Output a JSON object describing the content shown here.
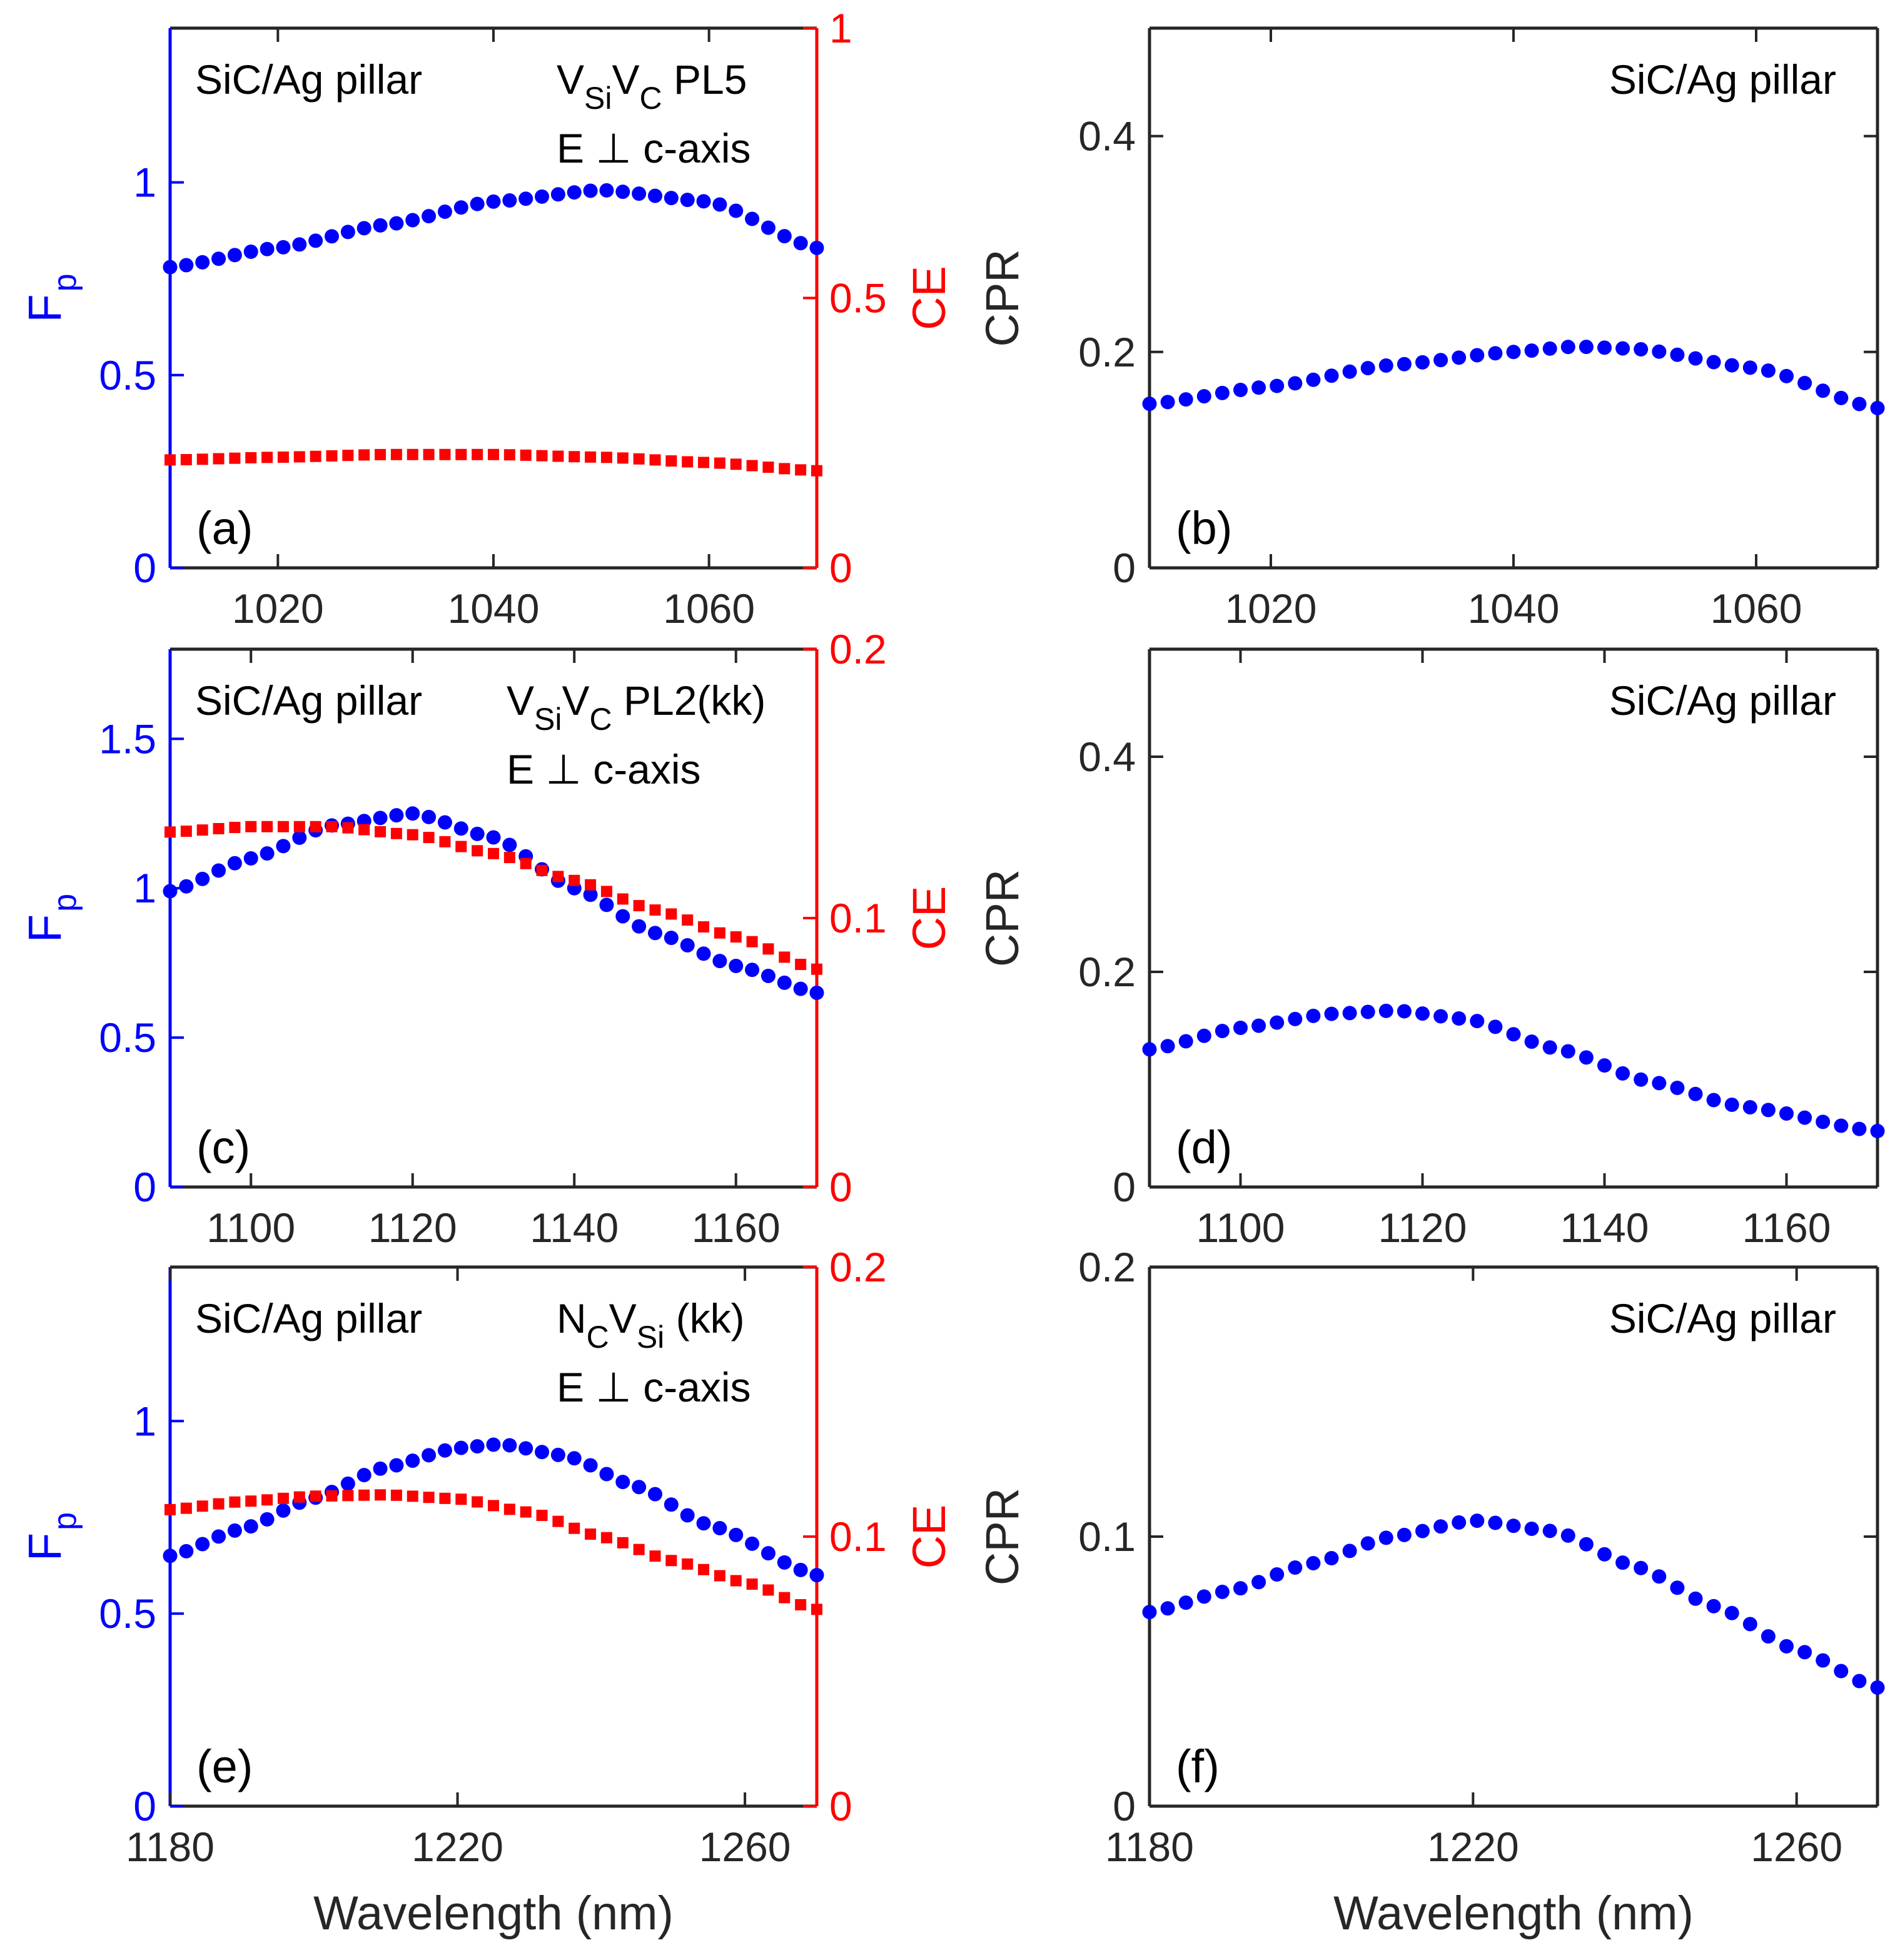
{
  "figure": {
    "xlabel": "Wavelength (nm)"
  },
  "chart_data": [
    {
      "panel": "a",
      "type": "scatter",
      "panel_label": "(a)",
      "annotation": "SiC/Ag pillar",
      "defect": {
        "base1": "V",
        "sub1": "Si",
        "base2": "V",
        "sub2": "C",
        "suffix": " PL5"
      },
      "polarization": "E ⊥ c-axis",
      "xlim": [
        1010,
        1070
      ],
      "xticks": [
        1020,
        1040,
        1060
      ],
      "xticklabels": [
        "1020",
        "1040",
        "1060"
      ],
      "ylabel": "F",
      "ylabel_sub": "p",
      "ylim": [
        0,
        1.4
      ],
      "yticks": [
        0,
        0.5,
        1
      ],
      "yticklabels": [
        "0",
        "0.5",
        "1"
      ],
      "y2label": "CE",
      "y2lim": [
        0,
        1
      ],
      "y2ticks": [
        0,
        0.5,
        1
      ],
      "y2ticklabels": [
        "0",
        "0.5",
        "1"
      ],
      "colors": {
        "fp": "#0000ff",
        "ce": "#ff0000"
      },
      "series": [
        {
          "name": "Fp",
          "axis": "left",
          "marker": "circle",
          "peak_x": 1050,
          "x_start": 1010,
          "x_end": 1070,
          "n": 41,
          "knots_x": [
            1010,
            1020,
            1030,
            1040,
            1050,
            1060,
            1070
          ],
          "knots_y": [
            0.78,
            0.83,
            0.89,
            0.95,
            0.98,
            0.95,
            0.83
          ]
        },
        {
          "name": "CE",
          "axis": "right",
          "marker": "square",
          "x_start": 1010,
          "x_end": 1070,
          "n": 41,
          "knots_x": [
            1010,
            1020,
            1030,
            1040,
            1050,
            1060,
            1070
          ],
          "knots_y": [
            0.2,
            0.205,
            0.21,
            0.21,
            0.205,
            0.195,
            0.18
          ]
        }
      ]
    },
    {
      "panel": "b",
      "type": "scatter",
      "panel_label": "(b)",
      "annotation": "SiC/Ag pillar",
      "xlim": [
        1010,
        1070
      ],
      "xticks": [
        1020,
        1040,
        1060
      ],
      "xticklabels": [
        "1020",
        "1040",
        "1060"
      ],
      "ylabel": "CPR",
      "ylim": [
        0,
        0.5
      ],
      "yticks": [
        0,
        0.2,
        0.4
      ],
      "yticklabels": [
        "0",
        "0.2",
        "0.4"
      ],
      "colors": {
        "cpr": "#0000ff"
      },
      "series": [
        {
          "name": "CPR",
          "axis": "left",
          "marker": "circle",
          "x_start": 1010,
          "x_end": 1070,
          "n": 41,
          "knots_x": [
            1010,
            1020,
            1030,
            1040,
            1045,
            1050,
            1060,
            1070
          ],
          "knots_y": [
            0.152,
            0.168,
            0.188,
            0.2,
            0.205,
            0.203,
            0.185,
            0.148
          ]
        }
      ]
    },
    {
      "panel": "c",
      "type": "scatter",
      "panel_label": "(c)",
      "annotation": "SiC/Ag pillar",
      "defect": {
        "base1": "V",
        "sub1": "Si",
        "base2": "V",
        "sub2": "C",
        "suffix": " PL2(kk)"
      },
      "polarization": "E ⊥ c-axis",
      "xlim": [
        1090,
        1170
      ],
      "xticks": [
        1100,
        1120,
        1140,
        1160
      ],
      "xticklabels": [
        "1100",
        "1120",
        "1140",
        "1160"
      ],
      "ylabel": "F",
      "ylabel_sub": "p",
      "ylim": [
        0,
        1.8
      ],
      "yticks": [
        0,
        0.5,
        1,
        1.5
      ],
      "yticklabels": [
        "0",
        "0.5",
        "1",
        "1.5"
      ],
      "y2label": "CE",
      "y2lim": [
        0,
        0.2
      ],
      "y2ticks": [
        0,
        0.1,
        0.2
      ],
      "y2ticklabels": [
        "0",
        "0.1",
        "0.2"
      ],
      "colors": {
        "fp": "#0000ff",
        "ce": "#ff0000"
      },
      "series": [
        {
          "name": "Fp",
          "axis": "left",
          "marker": "circle",
          "x_start": 1090,
          "x_end": 1170,
          "n": 41,
          "knots_x": [
            1090,
            1100,
            1110,
            1120,
            1130,
            1140,
            1150,
            1160,
            1170
          ],
          "knots_y": [
            0.99,
            1.1,
            1.21,
            1.25,
            1.17,
            1.0,
            0.85,
            0.74,
            0.65
          ]
        },
        {
          "name": "CE",
          "axis": "right",
          "marker": "square",
          "x_start": 1090,
          "x_end": 1170,
          "n": 41,
          "knots_x": [
            1090,
            1100,
            1110,
            1120,
            1130,
            1140,
            1150,
            1160,
            1170
          ],
          "knots_y": [
            0.132,
            0.134,
            0.134,
            0.131,
            0.124,
            0.114,
            0.103,
            0.093,
            0.081
          ]
        }
      ]
    },
    {
      "panel": "d",
      "type": "scatter",
      "panel_label": "(d)",
      "annotation": "SiC/Ag pillar",
      "xlim": [
        1090,
        1170
      ],
      "xticks": [
        1100,
        1120,
        1140,
        1160
      ],
      "xticklabels": [
        "1100",
        "1120",
        "1140",
        "1160"
      ],
      "ylabel": "CPR",
      "ylim": [
        0,
        0.5
      ],
      "yticks": [
        0,
        0.2,
        0.4
      ],
      "yticklabels": [
        "0",
        "0.2",
        "0.4"
      ],
      "colors": {
        "cpr": "#0000ff"
      },
      "series": [
        {
          "name": "CPR",
          "axis": "left",
          "marker": "circle",
          "x_start": 1090,
          "x_end": 1170,
          "n": 41,
          "knots_x": [
            1090,
            1100,
            1110,
            1117,
            1125,
            1135,
            1145,
            1155,
            1170
          ],
          "knots_y": [
            0.128,
            0.148,
            0.161,
            0.164,
            0.156,
            0.128,
            0.098,
            0.075,
            0.052
          ]
        }
      ]
    },
    {
      "panel": "e",
      "type": "scatter",
      "panel_label": "(e)",
      "annotation": "SiC/Ag pillar",
      "defect": {
        "base1": "N",
        "sub1": "C",
        "base2": "V",
        "sub2": "Si",
        "suffix": " (kk)"
      },
      "polarization": "E ⊥ c-axis",
      "xlim": [
        1180,
        1270
      ],
      "xticks": [
        1180,
        1220,
        1260
      ],
      "xticklabels": [
        "1180",
        "1220",
        "1260"
      ],
      "ylabel": "F",
      "ylabel_sub": "p",
      "ylim": [
        0,
        1.4
      ],
      "yticks": [
        0,
        0.5,
        1
      ],
      "yticklabels": [
        "0",
        "0.5",
        "1"
      ],
      "y2label": "CE",
      "y2lim": [
        0,
        0.2
      ],
      "y2ticks": [
        0,
        0.1,
        0.2
      ],
      "y2ticklabels": [
        "0",
        "0.1",
        "0.2"
      ],
      "colors": {
        "fp": "#0000ff",
        "ce": "#ff0000"
      },
      "series": [
        {
          "name": "Fp",
          "axis": "left",
          "marker": "circle",
          "x_start": 1180,
          "x_end": 1270,
          "n": 41,
          "knots_x": [
            1180,
            1190,
            1200,
            1210,
            1220,
            1226,
            1235,
            1245,
            1255,
            1270
          ],
          "knots_y": [
            0.65,
            0.72,
            0.8,
            0.88,
            0.93,
            0.94,
            0.91,
            0.83,
            0.73,
            0.6
          ]
        },
        {
          "name": "CE",
          "axis": "right",
          "marker": "square",
          "x_start": 1180,
          "x_end": 1270,
          "n": 41,
          "knots_x": [
            1180,
            1190,
            1200,
            1210,
            1220,
            1230,
            1240,
            1250,
            1260,
            1270
          ],
          "knots_y": [
            0.11,
            0.113,
            0.115,
            0.1155,
            0.114,
            0.109,
            0.1,
            0.091,
            0.083,
            0.073
          ]
        }
      ]
    },
    {
      "panel": "f",
      "type": "scatter",
      "panel_label": "(f)",
      "annotation": "SiC/Ag pillar",
      "xlim": [
        1180,
        1270
      ],
      "xticks": [
        1180,
        1220,
        1260
      ],
      "xticklabels": [
        "1180",
        "1220",
        "1260"
      ],
      "ylabel": "CPR",
      "ylim": [
        0,
        0.2
      ],
      "yticks": [
        0,
        0.1,
        0.2
      ],
      "yticklabels": [
        "0",
        "0.1",
        "0.2"
      ],
      "colors": {
        "cpr": "#0000ff"
      },
      "series": [
        {
          "name": "CPR",
          "axis": "left",
          "marker": "circle",
          "x_start": 1180,
          "x_end": 1270,
          "n": 41,
          "knots_x": [
            1180,
            1190,
            1200,
            1210,
            1220,
            1230,
            1240,
            1250,
            1260,
            1270
          ],
          "knots_y": [
            0.072,
            0.08,
            0.09,
            0.1,
            0.106,
            0.102,
            0.089,
            0.074,
            0.058,
            0.044
          ]
        }
      ]
    }
  ]
}
